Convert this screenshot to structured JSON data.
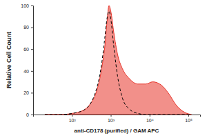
{
  "chart_data": {
    "type": "line",
    "x_label": "anti-CD178 (purified) / GAM APC",
    "y_label": "Relative Cell Count",
    "log": "x",
    "x": [
      20,
      50,
      100,
      200,
      300,
      400,
      500,
      600,
      700,
      800,
      900,
      1000,
      1200,
      1500,
      2000,
      3000,
      5000,
      8000,
      12000,
      20000,
      30000,
      50000,
      80000,
      120000
    ],
    "series": [
      {
        "type": "area",
        "color": "#e8342a",
        "values": [
          0,
          0,
          1,
          4,
          10,
          18,
          30,
          45,
          62,
          85,
          100,
          95,
          75,
          55,
          42,
          33,
          28,
          28,
          30,
          27,
          20,
          8,
          2,
          0
        ]
      },
      {
        "type": "line",
        "color": "#000000",
        "line_style": "dashed",
        "values": [
          0,
          0,
          1,
          4,
          10,
          20,
          33,
          50,
          70,
          88,
          95,
          88,
          62,
          35,
          15,
          5,
          1,
          0,
          0,
          0,
          0,
          0,
          0,
          0
        ]
      }
    ],
    "xlim": [
      10,
      200000
    ],
    "xticks": [
      {
        "value": 100,
        "label": "10²"
      },
      {
        "value": 1000,
        "label": "10³"
      },
      {
        "value": 10000,
        "label": "10⁴"
      },
      {
        "value": 100000,
        "label": "10⁵"
      }
    ],
    "ylim": [
      0,
      100
    ],
    "yticks": [
      0,
      20,
      40,
      60,
      80,
      100
    ],
    "grid": false
  }
}
